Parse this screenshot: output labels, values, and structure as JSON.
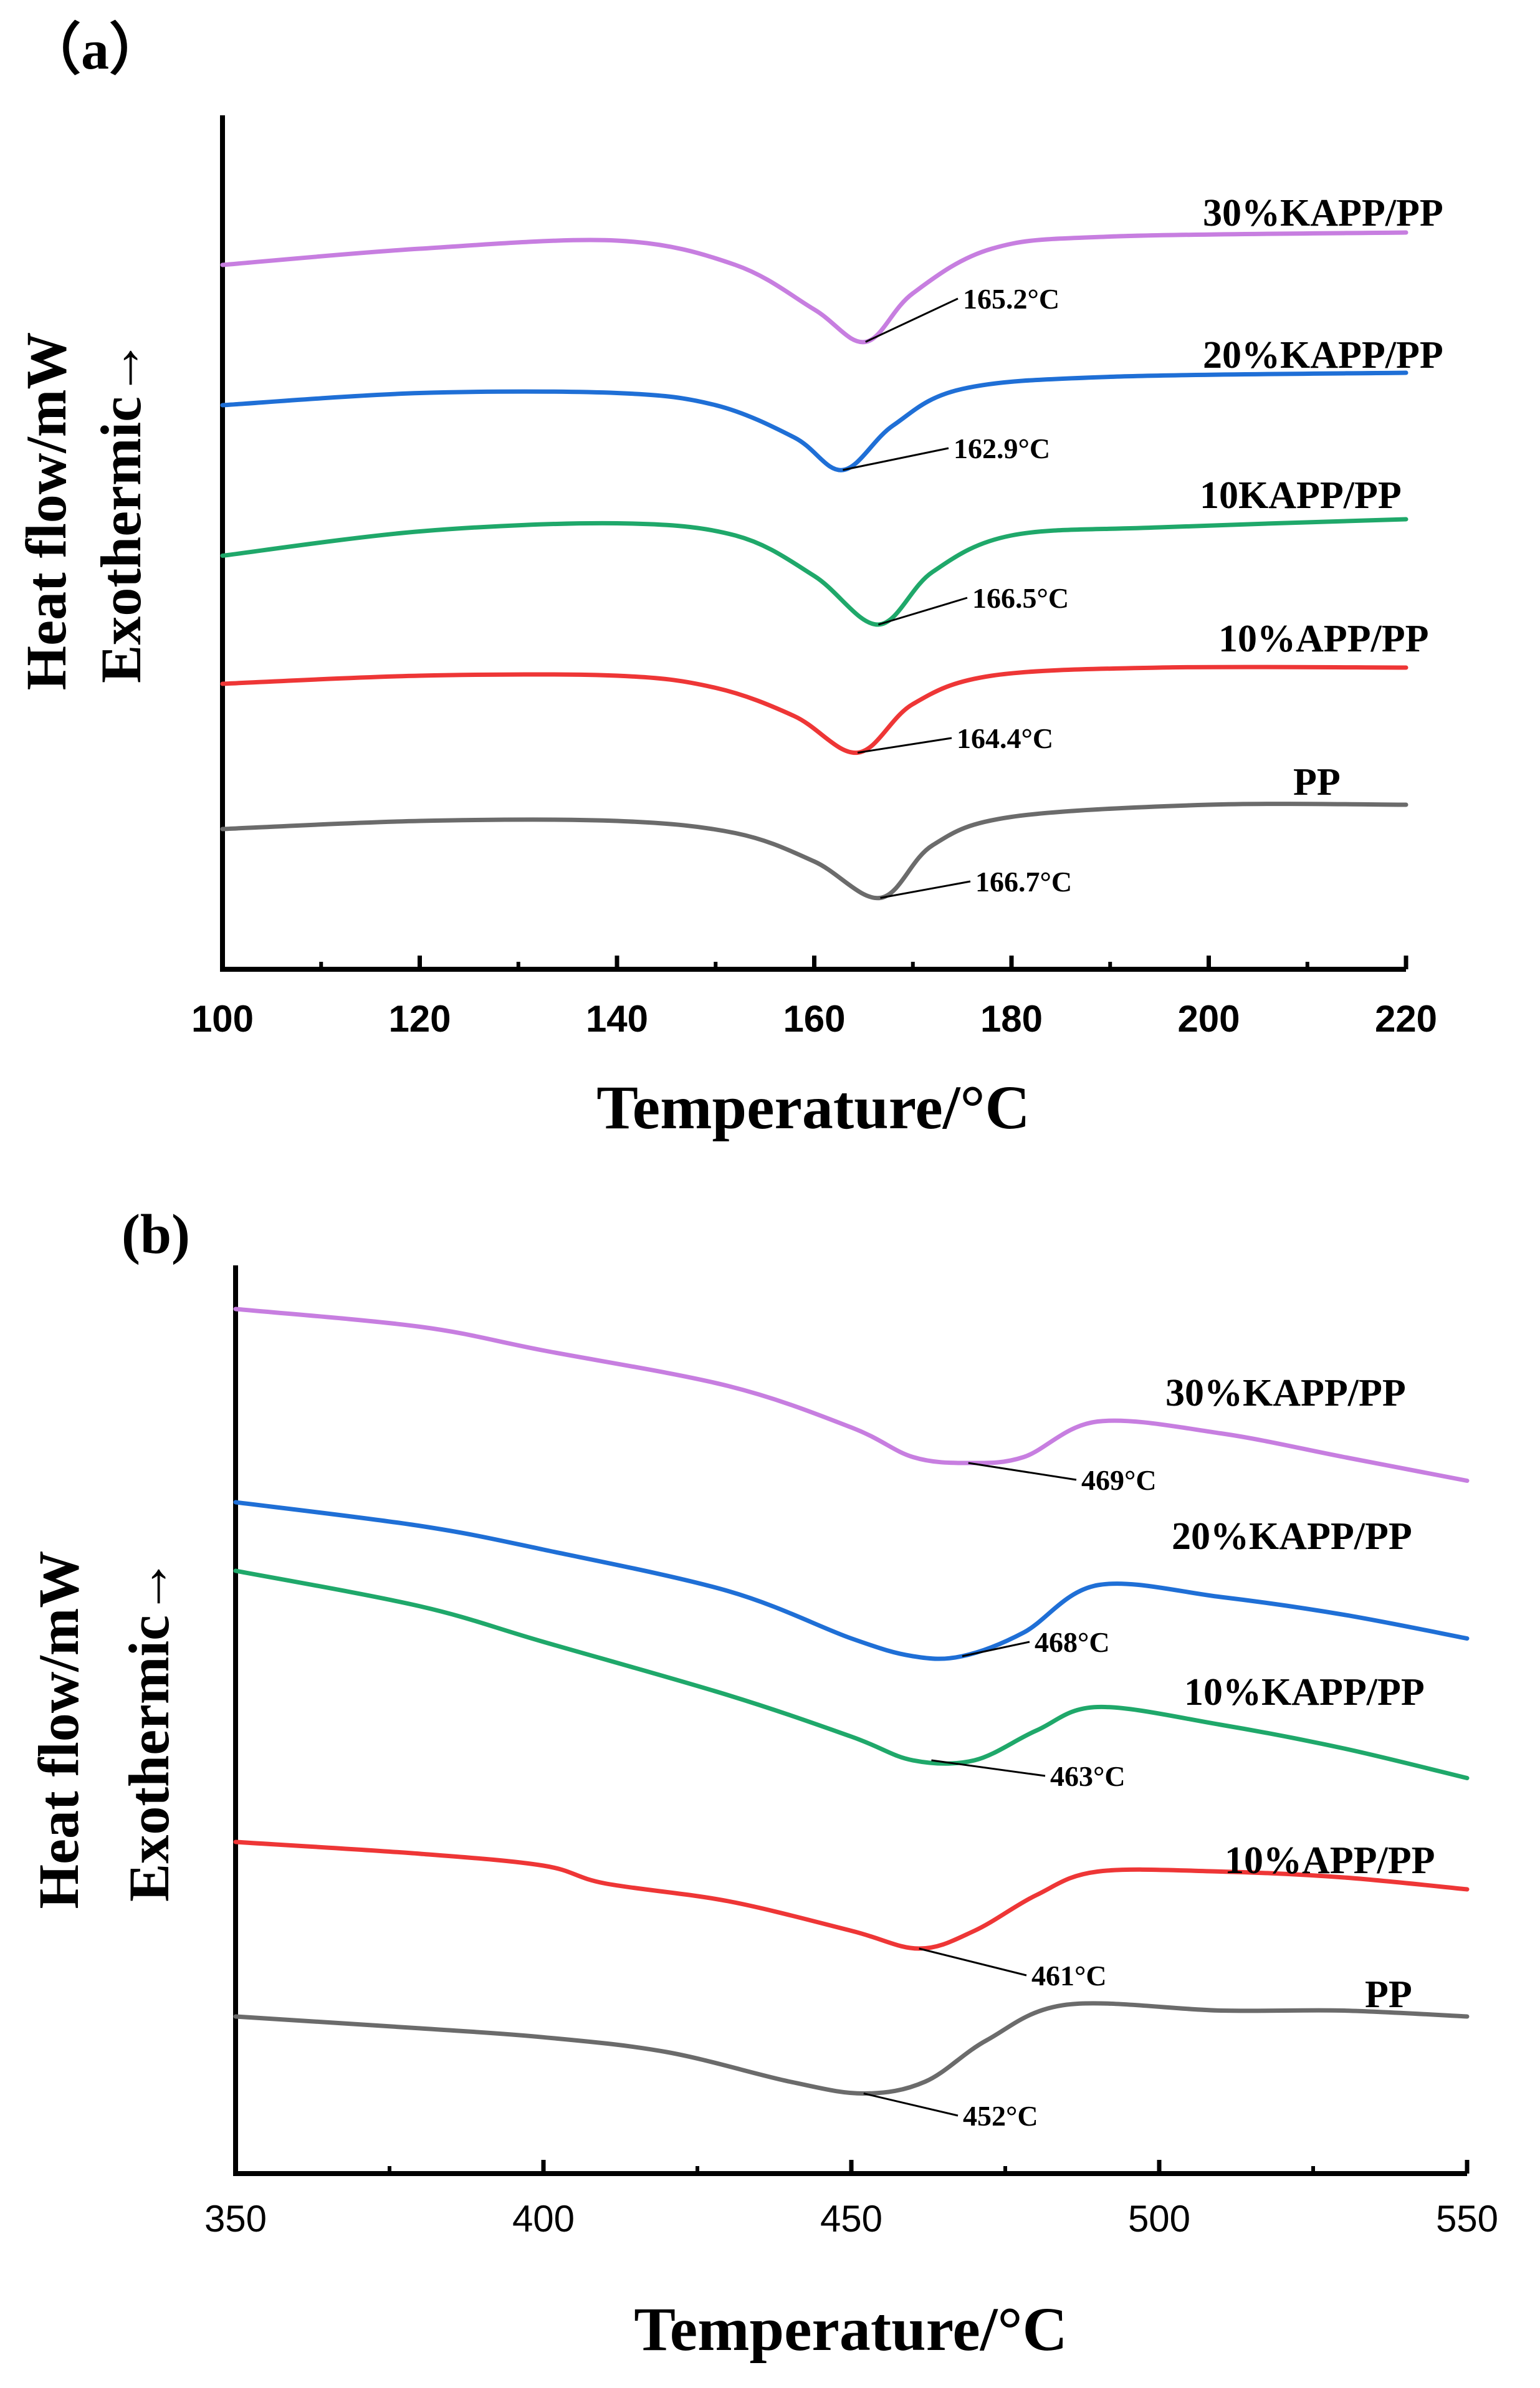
{
  "chart_data": [
    {
      "type": "line",
      "panel_label": "（a）",
      "title": "",
      "xlabel": "Temperature/°C",
      "ylabel_lines": [
        "Heat flow/mW",
        "Exothermic→"
      ],
      "xlim": [
        100,
        220
      ],
      "xticks": [
        "100",
        "120",
        "140",
        "160",
        "180",
        "200",
        "220"
      ],
      "series": [
        {
          "name": "30%KAPP/PP",
          "color": "#c77ee0",
          "peak": 165.2,
          "annotation": "165.2°C",
          "points": [
            [
              100,
              0.2
            ],
            [
              120,
              0.6
            ],
            [
              140,
              0.8
            ],
            [
              152,
              0.2
            ],
            [
              160,
              -0.9
            ],
            [
              165.2,
              -1.7
            ],
            [
              170,
              -0.5
            ],
            [
              178,
              0.6
            ],
            [
              190,
              0.9
            ],
            [
              220,
              1.0
            ]
          ]
        },
        {
          "name": "20%KAPP/PP",
          "color": "#1f6fd6",
          "peak": 162.9,
          "annotation": "162.9°C",
          "points": [
            [
              100,
              0.2
            ],
            [
              120,
              0.5
            ],
            [
              140,
              0.5
            ],
            [
              150,
              0.2
            ],
            [
              158,
              -0.6
            ],
            [
              162.9,
              -1.4
            ],
            [
              168,
              -0.3
            ],
            [
              175,
              0.6
            ],
            [
              190,
              0.9
            ],
            [
              220,
              1.0
            ]
          ]
        },
        {
          "name": "10KAPP/PP",
          "color": "#1fa86a",
          "peak": 166.5,
          "annotation": "166.5°C",
          "points": [
            [
              100,
              0.1
            ],
            [
              120,
              0.7
            ],
            [
              140,
              0.9
            ],
            [
              152,
              0.6
            ],
            [
              160,
              -0.4
            ],
            [
              166.5,
              -1.6
            ],
            [
              172,
              -0.3
            ],
            [
              180,
              0.6
            ],
            [
              195,
              0.8
            ],
            [
              220,
              1.0
            ]
          ]
        },
        {
          "name": "10%APP/PP",
          "color": "#ee3636",
          "peak": 164.4,
          "annotation": "164.4°C",
          "points": [
            [
              100,
              0.2
            ],
            [
              120,
              0.4
            ],
            [
              140,
              0.4
            ],
            [
              150,
              0.1
            ],
            [
              158,
              -0.6
            ],
            [
              164.4,
              -1.5
            ],
            [
              170,
              -0.3
            ],
            [
              178,
              0.4
            ],
            [
              195,
              0.6
            ],
            [
              220,
              0.6
            ]
          ]
        },
        {
          "name": "PP",
          "color": "#6b6b6b",
          "peak": 166.7,
          "annotation": "166.7°C",
          "points": [
            [
              100,
              0.2
            ],
            [
              120,
              0.4
            ],
            [
              140,
              0.4
            ],
            [
              152,
              0.1
            ],
            [
              160,
              -0.6
            ],
            [
              166.7,
              -1.5
            ],
            [
              172,
              -0.2
            ],
            [
              180,
              0.5
            ],
            [
              200,
              0.8
            ],
            [
              220,
              0.8
            ]
          ]
        }
      ]
    },
    {
      "type": "line",
      "panel_label": "(b)",
      "title": "",
      "xlabel": "Temperature/°C",
      "ylabel_lines": [
        "Heat flow/mW",
        "Exothermic→"
      ],
      "xlim": [
        350,
        550
      ],
      "xticks": [
        "350",
        "400",
        "450",
        "500",
        "550"
      ],
      "series": [
        {
          "name": "30%KAPP/PP",
          "color": "#c77ee0",
          "peak": 469,
          "annotation": "469°C",
          "points": [
            [
              350,
              0.0
            ],
            [
              380,
              -0.3
            ],
            [
              400,
              -0.7
            ],
            [
              430,
              -1.3
            ],
            [
              450,
              -2.0
            ],
            [
              460,
              -2.5
            ],
            [
              469,
              -2.6
            ],
            [
              478,
              -2.5
            ],
            [
              490,
              -1.9
            ],
            [
              510,
              -2.1
            ],
            [
              530,
              -2.5
            ],
            [
              550,
              -2.9
            ]
          ]
        },
        {
          "name": "20%KAPP/PP",
          "color": "#1f6fd6",
          "peak": 468,
          "annotation": "468°C",
          "points": [
            [
              350,
              0.0
            ],
            [
              380,
              -0.4
            ],
            [
              400,
              -0.8
            ],
            [
              430,
              -1.5
            ],
            [
              450,
              -2.3
            ],
            [
              460,
              -2.6
            ],
            [
              468,
              -2.6
            ],
            [
              478,
              -2.2
            ],
            [
              490,
              -1.4
            ],
            [
              510,
              -1.6
            ],
            [
              530,
              -1.9
            ],
            [
              550,
              -2.3
            ]
          ]
        },
        {
          "name": "10%KAPP/PP",
          "color": "#1fa86a",
          "peak": 463,
          "annotation": "463°C",
          "points": [
            [
              350,
              0.0
            ],
            [
              380,
              -0.6
            ],
            [
              400,
              -1.2
            ],
            [
              430,
              -2.1
            ],
            [
              450,
              -2.8
            ],
            [
              460,
              -3.2
            ],
            [
              470,
              -3.2
            ],
            [
              480,
              -2.7
            ],
            [
              490,
              -2.3
            ],
            [
              510,
              -2.6
            ],
            [
              530,
              -3.0
            ],
            [
              550,
              -3.5
            ]
          ]
        },
        {
          "name": "10%APP/PP",
          "color": "#ee3636",
          "peak": 461,
          "annotation": "461°C",
          "points": [
            [
              350,
              0.0
            ],
            [
              380,
              -0.2
            ],
            [
              400,
              -0.4
            ],
            [
              410,
              -0.7
            ],
            [
              430,
              -1.0
            ],
            [
              450,
              -1.5
            ],
            [
              461,
              -1.8
            ],
            [
              470,
              -1.5
            ],
            [
              480,
              -0.9
            ],
            [
              490,
              -0.5
            ],
            [
              510,
              -0.5
            ],
            [
              530,
              -0.6
            ],
            [
              550,
              -0.8
            ]
          ]
        },
        {
          "name": "PP",
          "color": "#6b6b6b",
          "peak": 452,
          "annotation": "452°C",
          "points": [
            [
              350,
              0.0
            ],
            [
              380,
              -0.2
            ],
            [
              400,
              -0.35
            ],
            [
              420,
              -0.6
            ],
            [
              440,
              -1.1
            ],
            [
              452,
              -1.3
            ],
            [
              462,
              -1.1
            ],
            [
              472,
              -0.4
            ],
            [
              485,
              0.2
            ],
            [
              510,
              0.1
            ],
            [
              530,
              0.1
            ],
            [
              550,
              0.0
            ]
          ]
        }
      ]
    }
  ]
}
